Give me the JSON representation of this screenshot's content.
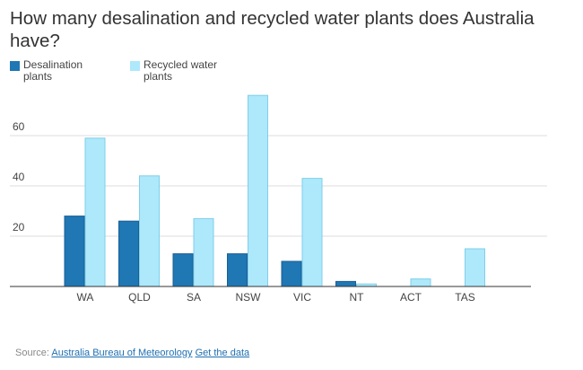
{
  "title": "How many desalination and recycled water plants does Australia have?",
  "colors": {
    "desalination": "#1f77b4",
    "recycled": "#aee8fb",
    "gridline": "#dddddd",
    "axis_text": "#444444"
  },
  "source": {
    "prefix": "Source: ",
    "link_label": "Australia Bureau of Meteorology",
    "data_link_label": "Get the data"
  },
  "chart_data": {
    "type": "bar",
    "categories": [
      "WA",
      "QLD",
      "SA",
      "NSW",
      "VIC",
      "NT",
      "ACT",
      "TAS"
    ],
    "series": [
      {
        "name": "Desalination plants",
        "values": [
          28,
          26,
          13,
          13,
          10,
          2,
          0,
          0
        ]
      },
      {
        "name": "Recycled water plants",
        "values": [
          59,
          44,
          27,
          76,
          43,
          1,
          3,
          15
        ]
      }
    ],
    "yticks": [
      20,
      40,
      60
    ],
    "ylim": [
      0,
      80
    ],
    "grid": true,
    "legend_position": "top-left"
  }
}
